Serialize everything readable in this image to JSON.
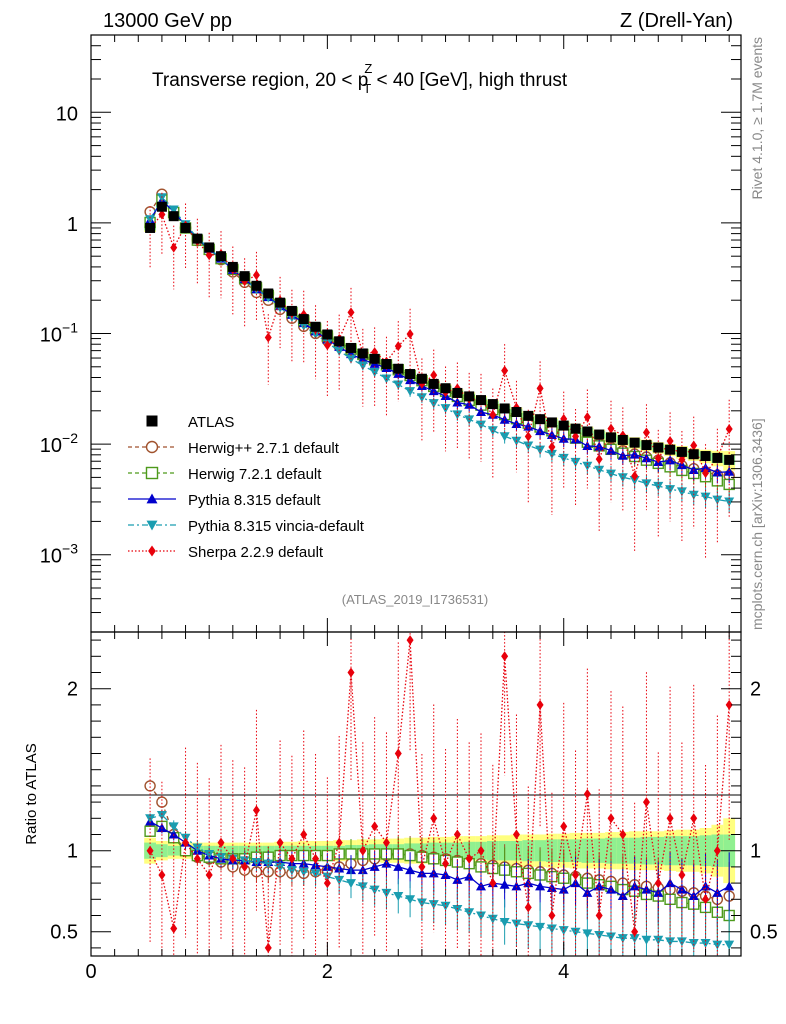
{
  "header": {
    "left": "13000 GeV pp",
    "right": "Z (Drell-Yan)",
    "side_rivet": "Rivet 4.1.0, ≥ 1.7M events",
    "side_mcplots": "mcplots.cern.ch [arXiv:1306.3436]"
  },
  "chart_data": {
    "type": "line",
    "title": "Transverse region, 20 < p_T^Z < 40 [GeV], high thrust",
    "title_parts": [
      "Transverse region, 20 < p",
      "Z",
      "T",
      " < 40 [GeV], high thrust"
    ],
    "watermark": "(ATLAS_2019_I1736531)",
    "xlabel": "",
    "ylabel_ratio": "Ratio to ATLAS",
    "xlim": [
      0,
      5.5
    ],
    "ylim_main": [
      0.0002,
      50
    ],
    "ylim_ratio": [
      0.35,
      2.35
    ],
    "yscale_main": "log",
    "x_ticks": [
      "0",
      "2",
      "4"
    ],
    "y_ticks_main": [
      {
        "v": 10,
        "base": "10",
        "exp": ""
      },
      {
        "v": 1,
        "base": "1",
        "exp": ""
      },
      {
        "v": 0.1,
        "base": "10",
        "exp": "−1"
      },
      {
        "v": 0.01,
        "base": "10",
        "exp": "−2"
      },
      {
        "v": 0.001,
        "base": "10",
        "exp": "−3"
      }
    ],
    "y_ticks_ratio": [
      "0.5",
      "1",
      "2"
    ],
    "legend_position": "middle-left",
    "x": [
      0.5,
      0.6,
      0.7,
      0.8,
      0.9,
      1.0,
      1.1,
      1.2,
      1.3,
      1.4,
      1.5,
      1.6,
      1.7,
      1.8,
      1.9,
      2.0,
      2.1,
      2.2,
      2.3,
      2.4,
      2.5,
      2.6,
      2.7,
      2.8,
      2.9,
      3.0,
      3.1,
      3.2,
      3.3,
      3.4,
      3.5,
      3.6,
      3.7,
      3.8,
      3.9,
      4.0,
      4.1,
      4.2,
      4.3,
      4.4,
      4.5,
      4.6,
      4.7,
      4.8,
      4.9,
      5.0,
      5.1,
      5.2,
      5.3,
      5.4
    ],
    "data": {
      "name": "ATLAS",
      "values": [
        0.9,
        1.4,
        1.15,
        0.9,
        0.72,
        0.6,
        0.5,
        0.4,
        0.33,
        0.27,
        0.23,
        0.19,
        0.16,
        0.135,
        0.115,
        0.098,
        0.085,
        0.074,
        0.066,
        0.059,
        0.053,
        0.048,
        0.043,
        0.039,
        0.035,
        0.032,
        0.029,
        0.027,
        0.025,
        0.023,
        0.021,
        0.0195,
        0.018,
        0.0168,
        0.0157,
        0.0147,
        0.0138,
        0.013,
        0.0122,
        0.0115,
        0.0109,
        0.0103,
        0.0098,
        0.0093,
        0.0089,
        0.0085,
        0.0081,
        0.0078,
        0.0075,
        0.0072
      ],
      "band_inner": [
        0.05,
        0.04,
        0.03,
        0.03,
        0.03,
        0.03,
        0.03,
        0.03,
        0.03,
        0.03,
        0.03,
        0.03,
        0.03,
        0.03,
        0.03,
        0.03,
        0.03,
        0.035,
        0.035,
        0.04,
        0.04,
        0.04,
        0.045,
        0.045,
        0.05,
        0.05,
        0.05,
        0.055,
        0.055,
        0.06,
        0.06,
        0.06,
        0.065,
        0.065,
        0.07,
        0.07,
        0.07,
        0.075,
        0.075,
        0.08,
        0.08,
        0.08,
        0.085,
        0.085,
        0.09,
        0.09,
        0.09,
        0.095,
        0.1,
        0.1
      ],
      "band_outer": [
        0.08,
        0.06,
        0.05,
        0.05,
        0.05,
        0.05,
        0.05,
        0.05,
        0.05,
        0.05,
        0.05,
        0.055,
        0.055,
        0.06,
        0.06,
        0.06,
        0.065,
        0.065,
        0.07,
        0.07,
        0.075,
        0.075,
        0.08,
        0.08,
        0.085,
        0.085,
        0.09,
        0.09,
        0.09,
        0.095,
        0.095,
        0.1,
        0.1,
        0.1,
        0.105,
        0.105,
        0.11,
        0.11,
        0.11,
        0.115,
        0.115,
        0.12,
        0.12,
        0.12,
        0.125,
        0.13,
        0.13,
        0.14,
        0.16,
        0.2
      ]
    },
    "series": [
      {
        "name": "Herwig++ 2.7.1 default",
        "color": "#a0522d",
        "marker": "circle-open",
        "dash": "4,3",
        "ratio": [
          1.4,
          1.3,
          1.1,
          1.0,
          0.96,
          0.95,
          0.93,
          0.9,
          0.88,
          0.87,
          0.87,
          0.87,
          0.86,
          0.86,
          0.87,
          0.88,
          0.9,
          0.92,
          0.94,
          0.95,
          0.97,
          0.98,
          0.98,
          0.97,
          0.96,
          0.95,
          0.94,
          0.93,
          0.92,
          0.91,
          0.9,
          0.89,
          0.88,
          0.87,
          0.86,
          0.85,
          0.84,
          0.83,
          0.82,
          0.81,
          0.8,
          0.79,
          0.78,
          0.77,
          0.76,
          0.75,
          0.74,
          0.72,
          0.7,
          0.72
        ]
      },
      {
        "name": "Herwig 7.2.1 default",
        "color": "#4d9a1b",
        "marker": "square-open",
        "dash": "4,3",
        "ratio": [
          1.12,
          1.15,
          1.08,
          1.0,
          0.97,
          0.96,
          0.95,
          0.95,
          0.95,
          0.96,
          0.96,
          0.97,
          0.97,
          0.97,
          0.97,
          0.97,
          0.98,
          0.98,
          0.98,
          0.98,
          0.98,
          0.98,
          0.97,
          0.96,
          0.95,
          0.94,
          0.93,
          0.92,
          0.9,
          0.89,
          0.88,
          0.87,
          0.86,
          0.85,
          0.84,
          0.83,
          0.82,
          0.8,
          0.79,
          0.78,
          0.76,
          0.75,
          0.73,
          0.72,
          0.7,
          0.68,
          0.67,
          0.65,
          0.62,
          0.6
        ]
      },
      {
        "name": "Pythia 8.315 default",
        "color": "#0000cc",
        "marker": "triangle-up",
        "dash": "",
        "ratio": [
          1.18,
          1.14,
          1.1,
          1.05,
          1.0,
          0.97,
          0.95,
          0.94,
          0.94,
          0.93,
          0.93,
          0.93,
          0.92,
          0.92,
          0.91,
          0.9,
          0.89,
          0.88,
          0.88,
          0.9,
          0.92,
          0.9,
          0.88,
          0.86,
          0.86,
          0.85,
          0.82,
          0.84,
          0.78,
          0.8,
          0.79,
          0.78,
          0.8,
          0.78,
          0.77,
          0.76,
          0.8,
          0.74,
          0.78,
          0.76,
          0.72,
          0.78,
          0.76,
          0.74,
          0.8,
          0.76,
          0.72,
          0.78,
          0.74,
          0.78
        ]
      },
      {
        "name": "Pythia 8.315 vincia-default",
        "color": "#1a9db0",
        "marker": "triangle-down",
        "dash": "6,3,2,3",
        "ratio": [
          1.2,
          1.22,
          1.15,
          1.08,
          1.02,
          0.98,
          0.96,
          0.95,
          0.94,
          0.93,
          0.92,
          0.9,
          0.88,
          0.87,
          0.86,
          0.84,
          0.82,
          0.8,
          0.78,
          0.76,
          0.74,
          0.72,
          0.7,
          0.68,
          0.67,
          0.66,
          0.64,
          0.62,
          0.6,
          0.58,
          0.56,
          0.55,
          0.54,
          0.53,
          0.52,
          0.51,
          0.5,
          0.49,
          0.48,
          0.47,
          0.46,
          0.46,
          0.45,
          0.45,
          0.44,
          0.44,
          0.43,
          0.43,
          0.42,
          0.42
        ]
      },
      {
        "name": "Sherpa 2.2.9 default",
        "color": "#e8000b",
        "marker": "diamond",
        "dash": "1.5,2",
        "ratio": [
          1.0,
          0.85,
          0.52,
          1.05,
          0.95,
          0.85,
          1.05,
          0.95,
          0.9,
          1.25,
          0.4,
          1.05,
          0.95,
          1.1,
          0.95,
          0.8,
          1.05,
          2.1,
          1.0,
          1.15,
          1.05,
          1.6,
          2.3,
          0.9,
          1.2,
          0.92,
          1.1,
          0.95,
          1.0,
          0.8,
          2.2,
          1.1,
          0.65,
          1.9,
          0.6,
          1.15,
          0.85,
          1.35,
          0.6,
          1.2,
          1.1,
          0.5,
          1.3,
          0.8,
          1.2,
          0.85,
          1.2,
          0.7,
          1.0,
          1.9
        ]
      }
    ]
  }
}
